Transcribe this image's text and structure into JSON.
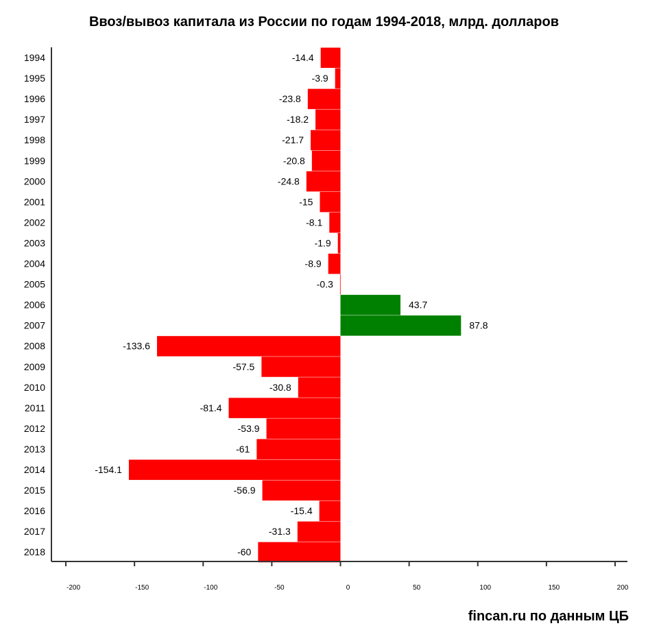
{
  "chart_data": {
    "type": "bar",
    "orientation": "horizontal",
    "title": "Ввоз/вывоз капитала из России по годам 1994-2018, млрд. долларов",
    "categories": [
      "1994",
      "1995",
      "1996",
      "1997",
      "1998",
      "1999",
      "2000",
      "2001",
      "2002",
      "2003",
      "2004",
      "2005",
      "2006",
      "2007",
      "2008",
      "2009",
      "2010",
      "2011",
      "2012",
      "2013",
      "2014",
      "2015",
      "2016",
      "2017",
      "2018"
    ],
    "values": [
      -14.4,
      -3.9,
      -23.8,
      -18.2,
      -21.7,
      -20.8,
      -24.8,
      -15,
      -8.1,
      -1.9,
      -8.9,
      -0.3,
      43.7,
      87.8,
      -133.6,
      -57.5,
      -30.8,
      -81.4,
      -53.9,
      -61,
      -154.1,
      -56.9,
      -15.4,
      -31.3,
      -60
    ],
    "value_labels": [
      "-14.4",
      "-3.9",
      "-23.8",
      "-18.2",
      "-21.7",
      "-20.8",
      "-24.8",
      "-15",
      "-8.1",
      "-1.9",
      "-8.9",
      "-0.3",
      "43.7",
      "87.8",
      "-133.6",
      "-57.5",
      "-30.8",
      "-81.4",
      "-53.9",
      "-61",
      "-154.1",
      "-56.9",
      "-15.4",
      "-31.3",
      "-60"
    ],
    "xlim": [
      -200,
      200
    ],
    "x_ticks": [
      -200,
      -150,
      -100,
      -50,
      0,
      50,
      100,
      150,
      200
    ],
    "x_tick_labels": [
      "-200",
      "-150",
      "-100",
      "-50",
      "0",
      "50",
      "100",
      "150",
      "200"
    ],
    "xlabel": "",
    "ylabel": "",
    "grid": false,
    "legend": "none",
    "colors": {
      "negative": "#ff0000",
      "positive": "#008000",
      "axis": "#333333",
      "text": "#000000"
    }
  },
  "source": "fincan.ru по данным ЦБ"
}
